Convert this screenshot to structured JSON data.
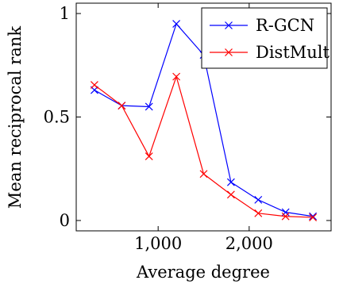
{
  "chart_data": {
    "type": "line",
    "title": "",
    "xlabel": "Average degree",
    "ylabel": "Mean reciprocal rank",
    "xlim": [
      100,
      2900
    ],
    "ylim": [
      -0.05,
      1.05
    ],
    "xticks": [
      {
        "value": 1000,
        "label": "1,000"
      },
      {
        "value": 2000,
        "label": "2,000"
      }
    ],
    "yticks": [
      {
        "value": 0,
        "label": "0"
      },
      {
        "value": 0.5,
        "label": "0.5"
      },
      {
        "value": 1,
        "label": "1"
      }
    ],
    "grid": false,
    "legend_position": "top-right",
    "series": [
      {
        "name": "R-GCN",
        "color": "#0000ff",
        "marker": "x",
        "x": [
          300,
          600,
          900,
          1200,
          1500,
          1800,
          2100,
          2400,
          2700
        ],
        "y": [
          0.63,
          0.555,
          0.55,
          0.95,
          0.8,
          0.185,
          0.1,
          0.04,
          0.02
        ]
      },
      {
        "name": "DistMult",
        "color": "#ff0000",
        "marker": "x",
        "x": [
          300,
          600,
          900,
          1200,
          1500,
          1800,
          2100,
          2400,
          2700
        ],
        "y": [
          0.655,
          0.555,
          0.31,
          0.695,
          0.225,
          0.125,
          0.035,
          0.02,
          0.015
        ]
      }
    ]
  }
}
